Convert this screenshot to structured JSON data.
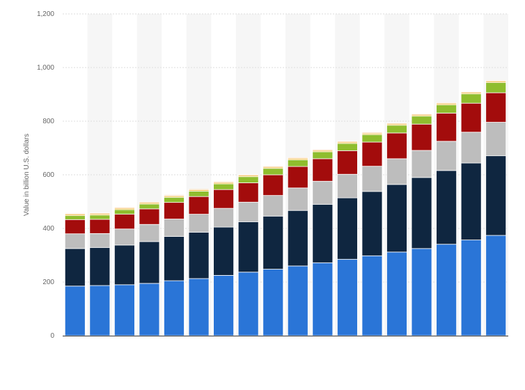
{
  "chart_data": {
    "type": "bar",
    "stacked": true,
    "title": "",
    "xlabel": "",
    "ylabel": "Value in billion U.S. dollars",
    "ylim": [
      0,
      1200
    ],
    "yticks": [
      0,
      200,
      400,
      600,
      800,
      1000,
      1200
    ],
    "ytick_labels": [
      "0",
      "200",
      "400",
      "600",
      "800",
      "1,000",
      "1,200"
    ],
    "grid": true,
    "legend": "none",
    "categories": [
      "",
      "",
      "",
      "",
      "",
      "",
      "",
      "",
      "",
      "",
      "",
      "",
      "",
      "",
      "",
      "",
      "",
      ""
    ],
    "series": [
      {
        "color": "#2a75d7",
        "values": [
          185,
          187,
          190,
          195,
          205,
          213,
          225,
          237,
          248,
          260,
          272,
          285,
          298,
          312,
          325,
          341,
          357,
          374
        ]
      },
      {
        "color": "#0f2640",
        "values": [
          140,
          142,
          148,
          156,
          165,
          173,
          180,
          188,
          198,
          207,
          218,
          229,
          240,
          252,
          265,
          275,
          287,
          297
        ]
      },
      {
        "color": "#bdbdbd",
        "values": [
          55,
          52,
          60,
          64,
          65,
          67,
          70,
          73,
          77,
          84,
          86,
          88,
          94,
          96,
          101,
          109,
          115,
          125
        ]
      },
      {
        "color": "#a30c0c",
        "values": [
          53,
          53,
          55,
          58,
          62,
          66,
          70,
          72,
          77,
          80,
          84,
          88,
          90,
          96,
          98,
          105,
          108,
          110
        ]
      },
      {
        "color": "#8fbd2e",
        "values": [
          15,
          16,
          17,
          18,
          19,
          20,
          21,
          23,
          24,
          25,
          26,
          27,
          28,
          29,
          30,
          31,
          35,
          38
        ]
      },
      {
        "color": "#f0c04a",
        "values": [
          5,
          5,
          5,
          5,
          5,
          5,
          5,
          5,
          5,
          5,
          5,
          5,
          5,
          5,
          5,
          5,
          5,
          5
        ]
      },
      {
        "color": "#f3a24b",
        "values": [
          3,
          3,
          3,
          3,
          3,
          3,
          3,
          3,
          3,
          3,
          3,
          3,
          3,
          3,
          3,
          3,
          3,
          3
        ]
      }
    ]
  }
}
